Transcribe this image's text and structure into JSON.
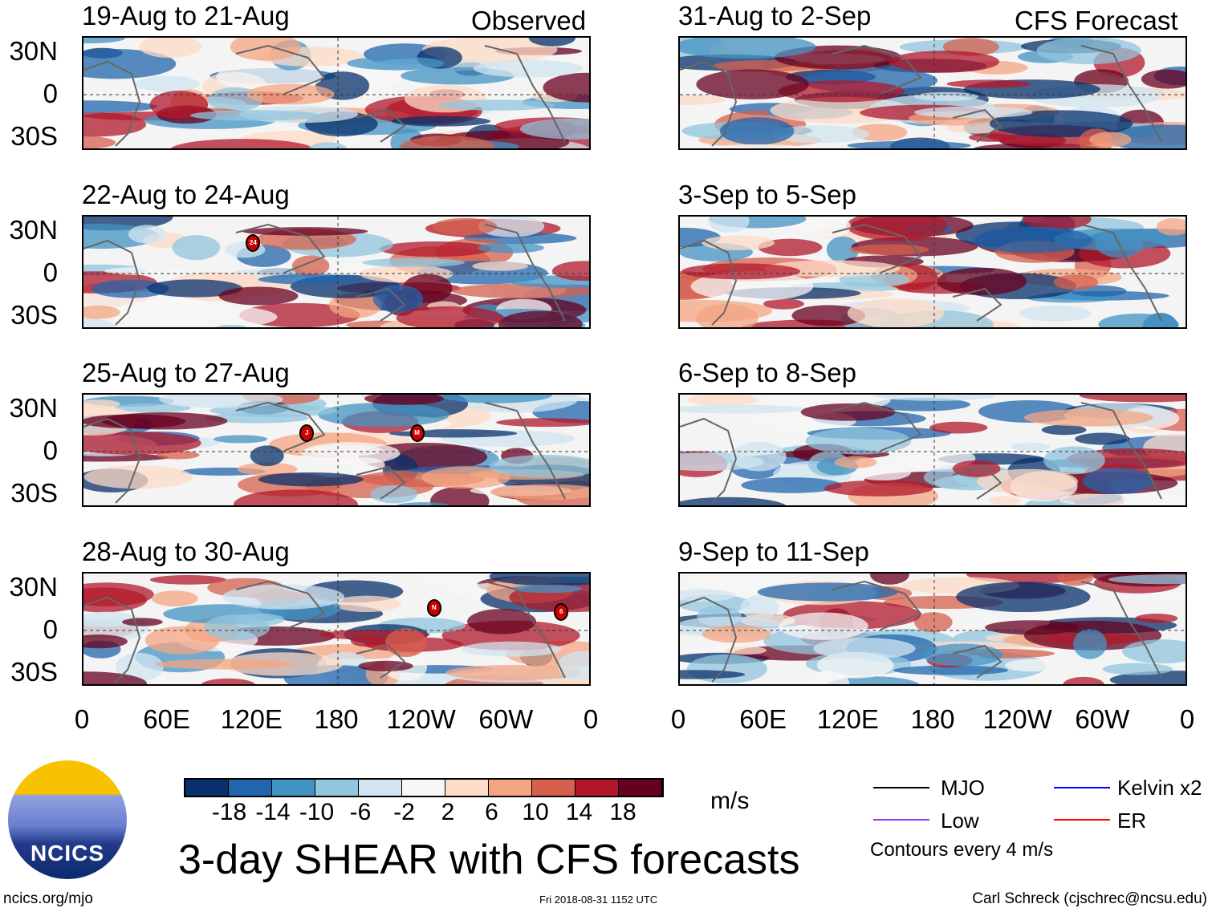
{
  "headers": {
    "left": "Observed",
    "right": "CFS Forecast"
  },
  "panels": [
    {
      "title": "19-Aug to 21-Aug",
      "storms": []
    },
    {
      "title": "22-Aug to 24-Aug",
      "storms": [
        {
          "label": "24",
          "lon": 120,
          "lat": 20
        }
      ]
    },
    {
      "title": "25-Aug to 27-Aug",
      "storms": [
        {
          "label": "J",
          "lon": 158,
          "lat": 12
        },
        {
          "label": "M",
          "lon": -124,
          "lat": 12
        }
      ]
    },
    {
      "title": "28-Aug to 30-Aug",
      "storms": [
        {
          "label": "N",
          "lon": -112,
          "lat": 15
        },
        {
          "label": "6",
          "lon": -22,
          "lat": 12
        }
      ]
    },
    {
      "title": "31-Aug to 2-Sep",
      "storms": []
    },
    {
      "title": "3-Sep to 5-Sep",
      "storms": []
    },
    {
      "title": "6-Sep to 8-Sep",
      "storms": []
    },
    {
      "title": "9-Sep to 11-Sep",
      "storms": []
    }
  ],
  "lat_labels": [
    "30N",
    "0",
    "30S"
  ],
  "lon_labels": [
    "0",
    "60E",
    "120E",
    "180",
    "120W",
    "60W",
    "0"
  ],
  "colorbar": {
    "colors": [
      "#08306b",
      "#2166ac",
      "#4393c3",
      "#92c5de",
      "#d1e5f0",
      "#f7f7f7",
      "#fddbc7",
      "#f4a582",
      "#d6604d",
      "#b2182b",
      "#67001f"
    ],
    "ticks": [
      "-18",
      "-14",
      "-10",
      "-6",
      "-2",
      "2",
      "6",
      "10",
      "14",
      "18"
    ],
    "units": "m/s"
  },
  "title": "3-day SHEAR with CFS forecasts",
  "legend": {
    "items": [
      {
        "label": "MJO",
        "color": "#000000"
      },
      {
        "label": "Kelvin x2",
        "color": "#0000ff"
      },
      {
        "label": "Low",
        "color": "#9933ff"
      },
      {
        "label": "ER",
        "color": "#ff0000"
      }
    ],
    "note": "Contours every 4 m/s"
  },
  "logo": "NCICS",
  "footer": {
    "left": "ncics.org/mjo",
    "center": "Fri 2018-08-31 1152 UTC",
    "right": "Carl Schreck (cjschrec@ncsu.edu)"
  }
}
